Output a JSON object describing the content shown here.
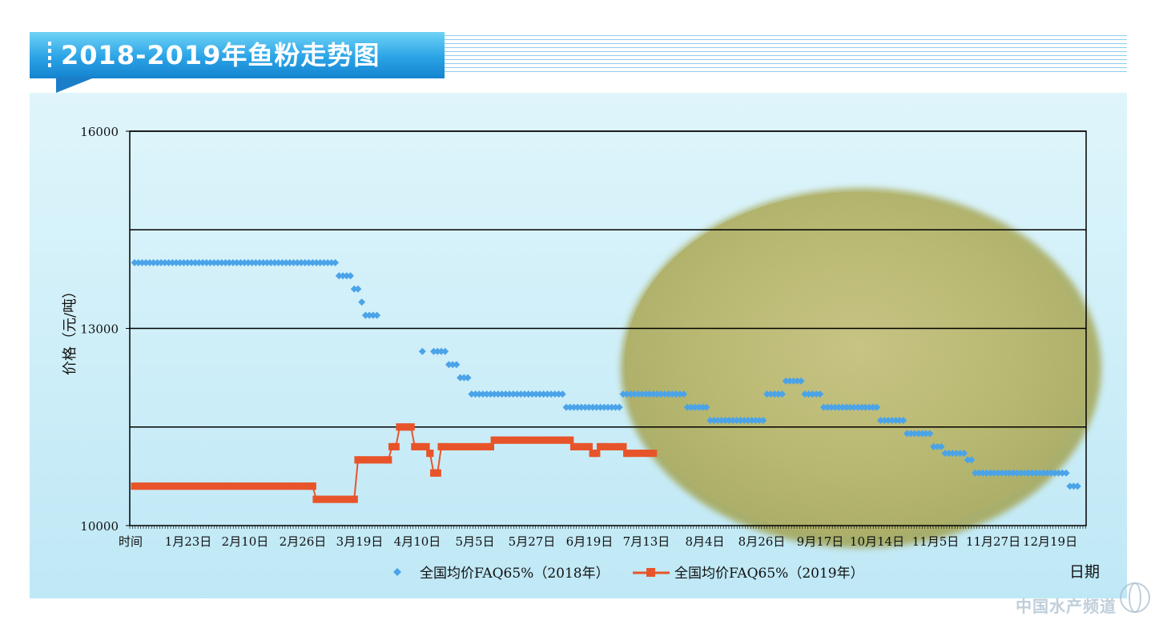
{
  "header": {
    "title": "2018-2019年鱼粉走势图"
  },
  "watermark": "中国水产频道",
  "colors": {
    "series_2018": "#4ba3e8",
    "series_2019": "#e8542a",
    "grid": "#000000",
    "panel": "#cdeef8",
    "fishmeal": "#b5b56a"
  },
  "chart_data": {
    "type": "line",
    "title": "",
    "xlabel": "日期",
    "ylabel": "价格（元/吨）",
    "ylim": [
      10000,
      16000
    ],
    "yticks": [
      10000,
      13000,
      16000
    ],
    "gridlines": [
      11500,
      13000,
      14500,
      16000
    ],
    "xticks": [
      "时间",
      "1月23日",
      "2月10日",
      "2月26日",
      "3月19日",
      "4月10日",
      "5月5日",
      "5月27日",
      "6月19日",
      "7月13日",
      "8月4日",
      "8月26日",
      "9月17日",
      "10月14日",
      "11月5日",
      "11月27日",
      "12月19日"
    ],
    "x_count": 251,
    "legend_position": "bottom",
    "series": [
      {
        "name": "全国均价FAQ65%（2018年）",
        "marker": "diamond",
        "line": false,
        "segments": [
          {
            "from": 0,
            "to": 13,
            "value": 14000
          },
          {
            "from": 14,
            "to": 46,
            "value": 14000
          },
          {
            "from": 47,
            "to": 52,
            "value": 14000
          },
          {
            "from": 53,
            "to": 53,
            "value": 14000
          },
          {
            "from": 54,
            "to": 57,
            "value": 13800
          },
          {
            "from": 58,
            "to": 59,
            "value": 13600
          },
          {
            "from": 60,
            "to": 60,
            "value": 13400
          },
          {
            "from": 61,
            "to": 64,
            "value": 13200
          },
          {
            "from": 76,
            "to": 76,
            "value": 12650
          },
          {
            "from": 79,
            "to": 82,
            "value": 12650
          },
          {
            "from": 83,
            "to": 85,
            "value": 12450
          },
          {
            "from": 86,
            "to": 88,
            "value": 12250
          },
          {
            "from": 89,
            "to": 113,
            "value": 12000
          },
          {
            "from": 114,
            "to": 128,
            "value": 11800
          },
          {
            "from": 129,
            "to": 145,
            "value": 12000
          },
          {
            "from": 146,
            "to": 151,
            "value": 11800
          },
          {
            "from": 152,
            "to": 166,
            "value": 11600
          },
          {
            "from": 167,
            "to": 171,
            "value": 12000
          },
          {
            "from": 172,
            "to": 176,
            "value": 12200
          },
          {
            "from": 177,
            "to": 181,
            "value": 12000
          },
          {
            "from": 182,
            "to": 196,
            "value": 11800
          },
          {
            "from": 197,
            "to": 203,
            "value": 11600
          },
          {
            "from": 204,
            "to": 210,
            "value": 11400
          },
          {
            "from": 211,
            "to": 213,
            "value": 11200
          },
          {
            "from": 214,
            "to": 219,
            "value": 11100
          },
          {
            "from": 220,
            "to": 221,
            "value": 11000
          },
          {
            "from": 222,
            "to": 241,
            "value": 10800
          },
          {
            "from": 242,
            "to": 243,
            "value": 10800
          },
          {
            "from": 244,
            "to": 246,
            "value": 10800
          },
          {
            "from": 247,
            "to": 249,
            "value": 10600
          }
        ]
      },
      {
        "name": "全国均价FAQ65%（2019年）",
        "marker": "square",
        "line": true,
        "points": [
          [
            0,
            10600
          ],
          [
            47,
            10600
          ],
          [
            48,
            10400
          ],
          [
            58,
            10400
          ],
          [
            59,
            11000
          ],
          [
            67,
            11000
          ],
          [
            68,
            11200
          ],
          [
            69,
            11200
          ],
          [
            70,
            11500
          ],
          [
            73,
            11500
          ],
          [
            74,
            11200
          ],
          [
            77,
            11200
          ],
          [
            78,
            11100
          ],
          [
            79,
            10800
          ],
          [
            80,
            10800
          ],
          [
            81,
            11200
          ],
          [
            94,
            11200
          ],
          [
            95,
            11300
          ],
          [
            115,
            11300
          ],
          [
            116,
            11200
          ],
          [
            120,
            11200
          ],
          [
            121,
            11100
          ],
          [
            122,
            11100
          ],
          [
            123,
            11200
          ],
          [
            129,
            11200
          ],
          [
            130,
            11100
          ],
          [
            137,
            11100
          ]
        ]
      }
    ]
  }
}
